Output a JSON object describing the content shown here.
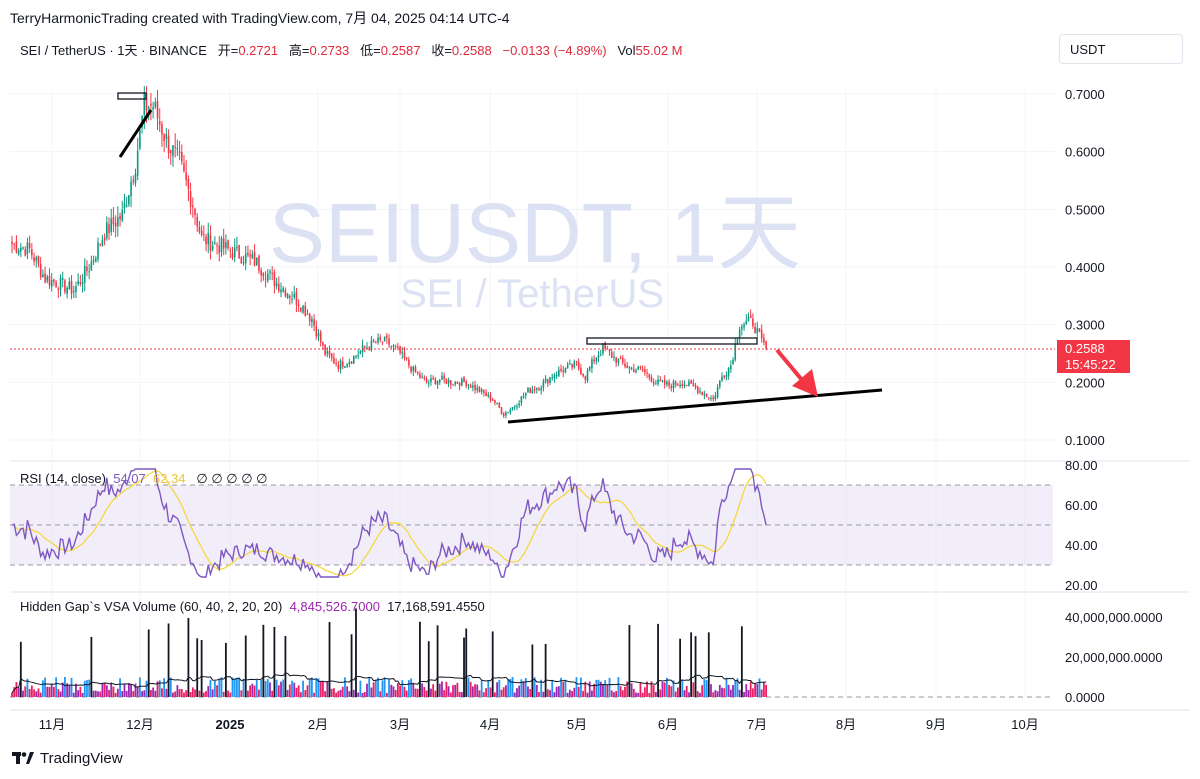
{
  "header": {
    "attribution": "TerryHarmonicTrading created with TradingView.com, 7月 04, 2025 04:14 UTC-4",
    "symbol": "SEI / TetherUS · 1天 · BINANCE",
    "open_label": "开=",
    "open": "0.2721",
    "high_label": "高=",
    "high": "0.2733",
    "low_label": "低=",
    "low": "0.2587",
    "close_label": "收=",
    "close": "0.2588",
    "change": "−0.0133 (−4.89%)",
    "vol_label": "Vol",
    "vol": "55.02 M"
  },
  "currency": "USDT",
  "watermark": {
    "main": "SEIUSDT, 1天",
    "sub": "SEI / TetherUS"
  },
  "price_tag": {
    "price": "0.2588",
    "countdown": "15:45:22"
  },
  "rsi": {
    "name": "RSI (14, close)",
    "value": "54.07",
    "ma": "62.34",
    "extras": "∅ ∅ ∅ ∅ ∅",
    "ticks": [
      "80.00",
      "60.00",
      "40.00",
      "20.00"
    ]
  },
  "volume_indicator": {
    "name": "Hidden Gap`s VSA Volume (60, 40, 2, 20, 20)",
    "value1": "4,845,526.7000",
    "value2": "17,168,591.4550",
    "ticks": [
      "40,000,000.0000",
      "20,000,000.0000",
      "0.0000"
    ]
  },
  "footer": {
    "brand": "TradingView"
  },
  "colors": {
    "up": "#089981",
    "down": "#f23645",
    "rsi": "#7e57c2",
    "rsi_ma": "#f5d742",
    "vol_blue": "#2196f3",
    "vol_purple": "#9c27b0"
  },
  "chart_data": {
    "type": "candlestick",
    "price_ticks": [
      "0.7000",
      "0.6000",
      "0.5000",
      "0.4000",
      "0.3000",
      "0.2000",
      "0.1000"
    ],
    "price_range": [
      0.05,
      0.74
    ],
    "x_labels": [
      "11月",
      "12月",
      "2025",
      "2月",
      "3月",
      "4月",
      "5月",
      "6月",
      "7月",
      "8月",
      "9月",
      "10月"
    ],
    "waypoints": [
      [
        0,
        0.44
      ],
      [
        8,
        0.43
      ],
      [
        15,
        0.38
      ],
      [
        22,
        0.37
      ],
      [
        28,
        0.36
      ],
      [
        35,
        0.4
      ],
      [
        42,
        0.46
      ],
      [
        50,
        0.49
      ],
      [
        56,
        0.58
      ],
      [
        60,
        0.68
      ],
      [
        64,
        0.68
      ],
      [
        70,
        0.62
      ],
      [
        76,
        0.58
      ],
      [
        82,
        0.51
      ],
      [
        86,
        0.45
      ],
      [
        92,
        0.44
      ],
      [
        98,
        0.43
      ],
      [
        104,
        0.42
      ],
      [
        110,
        0.41
      ],
      [
        118,
        0.38
      ],
      [
        124,
        0.36
      ],
      [
        130,
        0.34
      ],
      [
        136,
        0.31
      ],
      [
        142,
        0.25
      ],
      [
        148,
        0.23
      ],
      [
        154,
        0.24
      ],
      [
        160,
        0.26
      ],
      [
        166,
        0.27
      ],
      [
        170,
        0.27
      ],
      [
        176,
        0.25
      ],
      [
        182,
        0.22
      ],
      [
        188,
        0.2
      ],
      [
        194,
        0.205
      ],
      [
        200,
        0.2
      ],
      [
        206,
        0.2
      ],
      [
        212,
        0.185
      ],
      [
        218,
        0.17
      ],
      [
        223,
        0.145
      ],
      [
        228,
        0.16
      ],
      [
        234,
        0.185
      ],
      [
        240,
        0.195
      ],
      [
        246,
        0.215
      ],
      [
        252,
        0.225
      ],
      [
        256,
        0.23
      ],
      [
        260,
        0.21
      ],
      [
        264,
        0.24
      ],
      [
        268,
        0.26
      ],
      [
        274,
        0.24
      ],
      [
        280,
        0.225
      ],
      [
        286,
        0.22
      ],
      [
        292,
        0.2
      ],
      [
        298,
        0.195
      ],
      [
        304,
        0.2
      ],
      [
        310,
        0.19
      ],
      [
        314,
        0.18
      ],
      [
        318,
        0.17
      ],
      [
        322,
        0.21
      ],
      [
        326,
        0.23
      ],
      [
        330,
        0.3
      ],
      [
        336,
        0.305
      ],
      [
        340,
        0.27
      ],
      [
        342,
        0.2588
      ]
    ]
  }
}
